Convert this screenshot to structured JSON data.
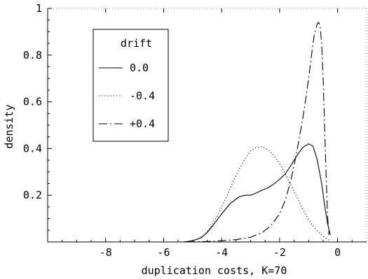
{
  "chart_data": {
    "type": "line",
    "xlabel": "duplication costs, K=70",
    "ylabel": "density",
    "xlim": [
      -10,
      1
    ],
    "ylim": [
      0,
      1
    ],
    "x_ticks": [
      -8,
      -6,
      -4,
      -2,
      0
    ],
    "y_ticks": [
      0.2,
      0.4,
      0.6,
      0.8,
      1
    ],
    "x_tick_labels": [
      "-8",
      "-6",
      "-4",
      "-2",
      "0"
    ],
    "y_tick_labels": [
      "0.2",
      "0.4",
      "0.6",
      "0.8",
      "1"
    ],
    "grid": false,
    "legend": {
      "title": "drift",
      "placement": "top-left",
      "entries": [
        "0.0",
        "-0.4",
        "+0.4"
      ]
    },
    "series": [
      {
        "name": "0.0",
        "style": "solid",
        "x": [
          -5.3,
          -5.0,
          -4.7,
          -4.5,
          -4.3,
          -4.0,
          -3.7,
          -3.4,
          -3.2,
          -3.0,
          -2.8,
          -2.6,
          -2.4,
          -2.2,
          -2.0,
          -1.8,
          -1.6,
          -1.4,
          -1.2,
          -1.0,
          -0.85,
          -0.7,
          -0.55,
          -0.45,
          -0.35,
          -0.25
        ],
        "values": [
          0.0,
          0.005,
          0.018,
          0.04,
          0.07,
          0.12,
          0.165,
          0.193,
          0.2,
          0.2,
          0.21,
          0.222,
          0.232,
          0.248,
          0.268,
          0.292,
          0.33,
          0.37,
          0.405,
          0.42,
          0.41,
          0.35,
          0.25,
          0.16,
          0.08,
          0.03
        ]
      },
      {
        "name": "-0.4",
        "style": "dotted",
        "x": [
          -5.4,
          -5.0,
          -4.8,
          -4.6,
          -4.4,
          -4.2,
          -4.0,
          -3.8,
          -3.6,
          -3.4,
          -3.2,
          -3.0,
          -2.8,
          -2.6,
          -2.4,
          -2.2,
          -2.0,
          -1.8,
          -1.6,
          -1.4,
          -1.2,
          -1.0,
          -0.8,
          -0.6,
          -0.4,
          -0.3
        ],
        "values": [
          0.0,
          0.005,
          0.015,
          0.03,
          0.06,
          0.1,
          0.15,
          0.2,
          0.26,
          0.31,
          0.355,
          0.39,
          0.405,
          0.408,
          0.395,
          0.37,
          0.335,
          0.29,
          0.24,
          0.19,
          0.14,
          0.095,
          0.06,
          0.035,
          0.015,
          0.008
        ]
      },
      {
        "name": "+0.4",
        "style": "dashdot",
        "x": [
          -5.2,
          -4.5,
          -4.0,
          -3.5,
          -3.0,
          -2.6,
          -2.3,
          -2.0,
          -1.8,
          -1.6,
          -1.4,
          -1.2,
          -1.1,
          -1.0,
          -0.9,
          -0.8,
          -0.7,
          -0.65,
          -0.6,
          -0.55,
          -0.5,
          -0.45,
          -0.4,
          -0.35,
          -0.3
        ],
        "values": [
          0.0,
          0.002,
          0.005,
          0.01,
          0.02,
          0.04,
          0.07,
          0.12,
          0.18,
          0.27,
          0.39,
          0.53,
          0.61,
          0.7,
          0.8,
          0.89,
          0.935,
          0.94,
          0.92,
          0.85,
          0.7,
          0.5,
          0.3,
          0.12,
          0.03
        ]
      }
    ]
  }
}
